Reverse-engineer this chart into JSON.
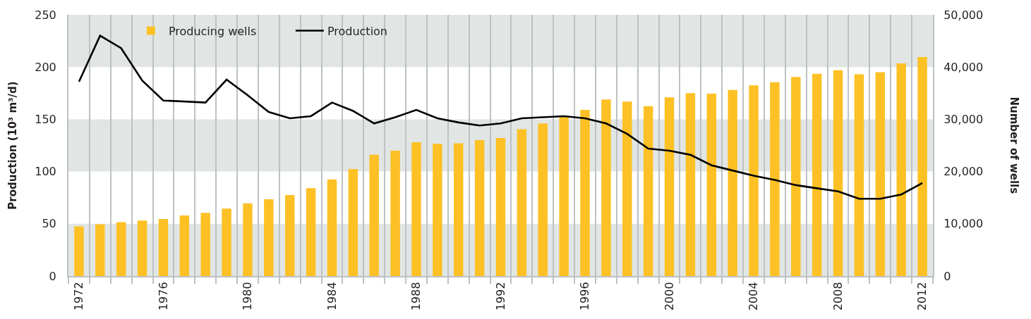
{
  "chart_data": {
    "type": "bar",
    "ylabel": "Production (10³ m³/d)",
    "y2label": "Number of wells",
    "categories": [
      "1972",
      null,
      null,
      null,
      "1976",
      null,
      null,
      null,
      "1980",
      null,
      null,
      null,
      "1984",
      null,
      null,
      null,
      "1988",
      null,
      null,
      null,
      "1992",
      null,
      null,
      null,
      "1996",
      null,
      null,
      null,
      "2000",
      null,
      null,
      null,
      "2004",
      null,
      null,
      null,
      "2008",
      null,
      null,
      null,
      "2012"
    ],
    "series": [
      {
        "name": "Producing wells",
        "axis": "y2",
        "color": "#fdc125",
        "values": [
          9500,
          9900,
          10300,
          10600,
          10900,
          11600,
          12100,
          12900,
          13900,
          14700,
          15500,
          16800,
          18500,
          20500,
          23200,
          24000,
          25600,
          25300,
          25400,
          26000,
          26400,
          28100,
          29200,
          30400,
          31800,
          33800,
          33400,
          32500,
          34200,
          35000,
          34900,
          35600,
          36500,
          37100,
          38100,
          38700,
          39400,
          38600,
          39000,
          40700,
          41900
        ]
      },
      {
        "name": "Production",
        "type": "line",
        "color": "#000000",
        "values": [
          186,
          230,
          218,
          187,
          168,
          167,
          166,
          188,
          173,
          157,
          151,
          153,
          166,
          158,
          146,
          152,
          159,
          151,
          147,
          144,
          146,
          151,
          152,
          153,
          151,
          146,
          136,
          122,
          120,
          116,
          106,
          101,
          96,
          92,
          87,
          84,
          81,
          74,
          74,
          78,
          89
        ]
      }
    ],
    "ylim": [
      0,
      250
    ],
    "yticks": [
      0,
      50,
      100,
      150,
      200,
      250
    ],
    "y2lim": [
      0,
      50000
    ],
    "y2ticks": [
      0,
      {
        "value": 10000,
        "label": "10,000"
      },
      {
        "value": 20000,
        "label": "20,000"
      },
      {
        "value": 30000,
        "label": "30,000"
      },
      {
        "value": 40000,
        "label": "40,000"
      },
      {
        "value": 50000,
        "label": "50,000"
      }
    ],
    "bands": [
      {
        "axis": "y",
        "from": 0,
        "to": 50,
        "color": "#e1e6e4"
      },
      {
        "axis": "y",
        "from": 100,
        "to": 150,
        "color": "#e1e6e4"
      },
      {
        "axis": "y",
        "from": 200,
        "to": 250,
        "color": "#e1e6e4"
      }
    ],
    "grid": "x",
    "legend": "top left"
  }
}
